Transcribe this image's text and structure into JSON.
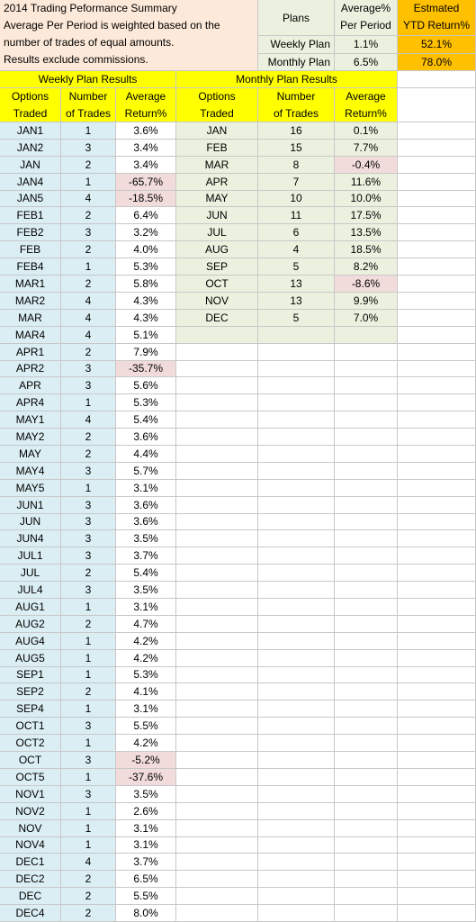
{
  "summary": {
    "lines": [
      "2014 Trading Peformance Summary",
      "Average Per Period is weighted based on the",
      "number of trades of equal amounts.",
      "Results exclude commissions."
    ]
  },
  "plans_table": {
    "header": {
      "plans": "Plans",
      "average_1": "Average%",
      "average_2": "Per Period",
      "ytd_1": "Estmated",
      "ytd_2": "YTD Return%"
    },
    "rows": [
      {
        "plan": "Weekly Plan",
        "average": "1.1%",
        "ytd": "52.1%"
      },
      {
        "plan": "Monthly Plan",
        "average": "6.5%",
        "ytd": "78.0%"
      }
    ]
  },
  "weekly": {
    "title": "Weekly Plan Results",
    "headers": {
      "options": [
        "Options",
        "Traded"
      ],
      "trades": [
        "Number",
        "of Trades"
      ],
      "return": [
        "Average",
        "Return%"
      ]
    },
    "rows": [
      [
        "JAN1",
        "1",
        "3.6%"
      ],
      [
        "JAN2",
        "3",
        "3.4%"
      ],
      [
        "JAN",
        "2",
        "3.4%"
      ],
      [
        "JAN4",
        "1",
        "-65.7%"
      ],
      [
        "JAN5",
        "4",
        "-18.5%"
      ],
      [
        "FEB1",
        "2",
        "6.4%"
      ],
      [
        "FEB2",
        "3",
        "3.2%"
      ],
      [
        "FEB",
        "2",
        "4.0%"
      ],
      [
        "FEB4",
        "1",
        "5.3%"
      ],
      [
        "MAR1",
        "2",
        "5.8%"
      ],
      [
        "MAR2",
        "4",
        "4.3%"
      ],
      [
        "MAR",
        "4",
        "4.3%"
      ],
      [
        "MAR4",
        "4",
        "5.1%"
      ],
      [
        "APR1",
        "2",
        "7.9%"
      ],
      [
        "APR2",
        "3",
        "-35.7%"
      ],
      [
        "APR",
        "3",
        "5.6%"
      ],
      [
        "APR4",
        "1",
        "5.3%"
      ],
      [
        "MAY1",
        "4",
        "5.4%"
      ],
      [
        "MAY2",
        "2",
        "3.6%"
      ],
      [
        "MAY",
        "2",
        "4.4%"
      ],
      [
        "MAY4",
        "3",
        "5.7%"
      ],
      [
        "MAY5",
        "1",
        "3.1%"
      ],
      [
        "JUN1",
        "3",
        "3.6%"
      ],
      [
        "JUN",
        "3",
        "3.6%"
      ],
      [
        "JUN4",
        "3",
        "3.5%"
      ],
      [
        "JUL1",
        "3",
        "3.7%"
      ],
      [
        "JUL",
        "2",
        "5.4%"
      ],
      [
        "JUL4",
        "3",
        "3.5%"
      ],
      [
        "AUG1",
        "1",
        "3.1%"
      ],
      [
        "AUG2",
        "2",
        "4.7%"
      ],
      [
        "AUG4",
        "1",
        "4.2%"
      ],
      [
        "AUG5",
        "1",
        "4.2%"
      ],
      [
        "SEP1",
        "1",
        "5.3%"
      ],
      [
        "SEP2",
        "2",
        "4.1%"
      ],
      [
        "SEP4",
        "1",
        "3.1%"
      ],
      [
        "OCT1",
        "3",
        "5.5%"
      ],
      [
        "OCT2",
        "1",
        "4.2%"
      ],
      [
        "OCT",
        "3",
        "-5.2%"
      ],
      [
        "OCT5",
        "1",
        "-37.6%"
      ],
      [
        "NOV1",
        "3",
        "3.5%"
      ],
      [
        "NOV2",
        "1",
        "2.6%"
      ],
      [
        "NOV",
        "1",
        "3.1%"
      ],
      [
        "NOV4",
        "1",
        "3.1%"
      ],
      [
        "DEC1",
        "4",
        "3.7%"
      ],
      [
        "DEC2",
        "2",
        "6.5%"
      ],
      [
        "DEC",
        "2",
        "5.5%"
      ],
      [
        "DEC4",
        "2",
        "8.0%"
      ]
    ]
  },
  "monthly": {
    "title": "Monthly Plan Results",
    "headers": {
      "options": [
        "Options",
        "Traded"
      ],
      "trades": [
        "Number",
        "of Trades"
      ],
      "return": [
        "Average",
        "Return%"
      ]
    },
    "rows": [
      [
        "JAN",
        "16",
        "0.1%"
      ],
      [
        "FEB",
        "15",
        "7.7%"
      ],
      [
        "MAR",
        "8",
        "-0.4%"
      ],
      [
        "APR",
        "7",
        "11.6%"
      ],
      [
        "MAY",
        "10",
        "10.0%"
      ],
      [
        "JUN",
        "11",
        "17.5%"
      ],
      [
        "JUL",
        "6",
        "13.5%"
      ],
      [
        "AUG",
        "4",
        "18.5%"
      ],
      [
        "SEP",
        "5",
        "8.2%"
      ],
      [
        "OCT",
        "13",
        "-8.6%"
      ],
      [
        "NOV",
        "13",
        "9.9%"
      ],
      [
        "DEC",
        "5",
        "7.0%"
      ],
      [
        "",
        "",
        ""
      ]
    ]
  },
  "colors": {
    "weekly_fill": "#dbeef4",
    "monthly_fill": "#ebf1de",
    "negative_fill": "#f2dcdb",
    "header_fill": "#ffff00",
    "ytd_fill": "#ffc000",
    "summary_fill": "#fde9d9"
  }
}
